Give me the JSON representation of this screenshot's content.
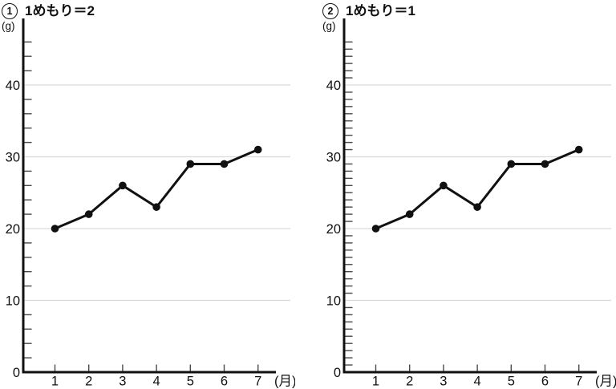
{
  "colors": {
    "axis": "#111111",
    "grid": "#d9d9d9",
    "tick": "#4a4a4a",
    "line": "#111111",
    "point": "#111111",
    "text": "#111111"
  },
  "chart_data": [
    {
      "type": "line",
      "index_number": "1",
      "title": "1めもり＝2",
      "ylabel": "(g)",
      "xlabel": "(月)",
      "x": [
        1,
        2,
        3,
        4,
        5,
        6,
        7
      ],
      "x_tick_labels": [
        "1",
        "2",
        "3",
        "4",
        "5",
        "6",
        "7"
      ],
      "values": [
        20,
        22,
        26,
        23,
        29,
        29,
        31
      ],
      "ylim": [
        0,
        46
      ],
      "y_major_ticks": [
        0,
        10,
        20,
        30,
        40
      ],
      "y_minor_step": 2,
      "grid": "horizontal gridlines at major ticks only",
      "legend": "none"
    },
    {
      "type": "line",
      "index_number": "2",
      "title": "1めもり＝1",
      "ylabel": "(g)",
      "xlabel": "(月)",
      "x": [
        1,
        2,
        3,
        4,
        5,
        6,
        7
      ],
      "x_tick_labels": [
        "1",
        "2",
        "3",
        "4",
        "5",
        "6",
        "7"
      ],
      "values": [
        20,
        22,
        26,
        23,
        29,
        29,
        31
      ],
      "ylim": [
        0,
        46
      ],
      "y_major_ticks": [
        0,
        10,
        20,
        30,
        40
      ],
      "y_minor_step": 1,
      "grid": "horizontal gridlines at major ticks only",
      "legend": "none"
    }
  ]
}
